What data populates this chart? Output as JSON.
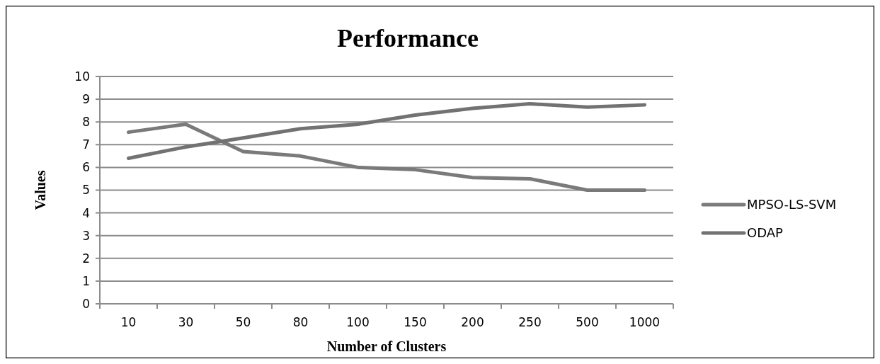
{
  "chart_data": {
    "type": "line",
    "title": "Performance",
    "xlabel": "Number of Clusters",
    "ylabel": "Values",
    "categories": [
      "10",
      "30",
      "50",
      "80",
      "100",
      "150",
      "200",
      "250",
      "500",
      "1000"
    ],
    "series": [
      {
        "name": "MPSO-LS-SVM",
        "color": "#7a7a7a",
        "values": [
          7.55,
          7.9,
          6.7,
          6.5,
          6.0,
          5.9,
          5.55,
          5.5,
          5.0,
          5.0
        ]
      },
      {
        "name": "ODAP",
        "color": "#727272",
        "values": [
          6.4,
          6.9,
          7.3,
          7.7,
          7.9,
          8.3,
          8.6,
          8.8,
          8.65,
          8.75
        ]
      }
    ],
    "ylim": [
      0,
      10
    ],
    "yticks": [
      0,
      1,
      2,
      3,
      4,
      5,
      6,
      7,
      8,
      9,
      10
    ],
    "grid": "y",
    "legend": "right",
    "marker": "none",
    "line_style": "solid"
  }
}
